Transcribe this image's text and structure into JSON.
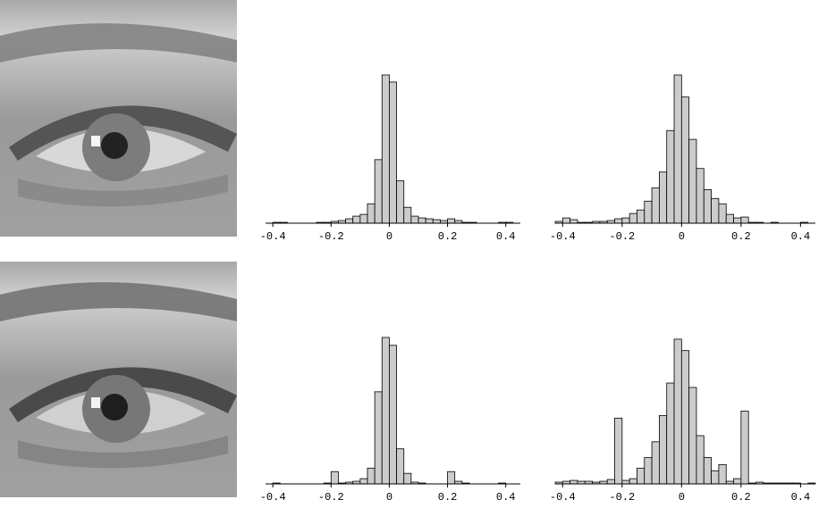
{
  "chart_data": [
    {
      "type": "histogram",
      "color": "#cccccc",
      "bins": [
        -0.425,
        -0.4,
        -0.375,
        -0.35,
        -0.325,
        -0.3,
        -0.275,
        -0.25,
        -0.225,
        -0.2,
        -0.175,
        -0.15,
        -0.125,
        -0.1,
        -0.075,
        -0.05,
        -0.025,
        0,
        0.025,
        0.05,
        0.075,
        0.1,
        0.125,
        0.15,
        0.175,
        0.2,
        0.225,
        0.25,
        0.275,
        0.3,
        0.325,
        0.35,
        0.375,
        0.4,
        0.425,
        0.45
      ],
      "values": [
        0,
        1,
        1,
        0,
        0,
        0,
        0,
        1,
        1,
        2,
        3,
        5,
        8,
        10,
        22,
        72,
        168,
        160,
        48,
        18,
        8,
        6,
        5,
        4,
        3,
        5,
        3,
        1,
        1,
        0,
        0,
        0,
        1,
        1,
        0
      ],
      "xlim": [
        -0.425,
        0.45
      ],
      "xticks": [
        -0.4,
        -0.2,
        0,
        0.2,
        0.4
      ],
      "ylim": [
        0,
        170
      ]
    },
    {
      "type": "histogram",
      "color": "#cccccc",
      "bins": [
        -0.425,
        -0.4,
        -0.375,
        -0.35,
        -0.325,
        -0.3,
        -0.275,
        -0.25,
        -0.225,
        -0.2,
        -0.175,
        -0.15,
        -0.125,
        -0.1,
        -0.075,
        -0.05,
        -0.025,
        0,
        0.025,
        0.05,
        0.075,
        0.1,
        0.125,
        0.15,
        0.175,
        0.2,
        0.225,
        0.25,
        0.275,
        0.3,
        0.325,
        0.35,
        0.375,
        0.4,
        0.425,
        0.45
      ],
      "values": [
        2,
        6,
        4,
        1,
        1,
        2,
        2,
        3,
        5,
        6,
        11,
        15,
        25,
        40,
        58,
        105,
        168,
        143,
        95,
        62,
        38,
        28,
        22,
        10,
        6,
        7,
        1,
        1,
        0,
        1,
        0,
        0,
        0,
        1,
        0
      ],
      "xlim": [
        -0.425,
        0.45
      ],
      "xticks": [
        -0.4,
        -0.2,
        0,
        0.2,
        0.4
      ],
      "ylim": [
        0,
        170
      ]
    },
    {
      "type": "histogram",
      "color": "#cccccc",
      "bins": [
        -0.425,
        -0.4,
        -0.375,
        -0.35,
        -0.325,
        -0.3,
        -0.275,
        -0.25,
        -0.225,
        -0.2,
        -0.175,
        -0.15,
        -0.125,
        -0.1,
        -0.075,
        -0.05,
        -0.025,
        0,
        0.025,
        0.05,
        0.075,
        0.1,
        0.125,
        0.15,
        0.175,
        0.2,
        0.225,
        0.25,
        0.275,
        0.3,
        0.325,
        0.35,
        0.375,
        0.4,
        0.425,
        0.45
      ],
      "values": [
        0,
        1,
        0,
        0,
        0,
        0,
        0,
        0,
        1,
        14,
        1,
        2,
        3,
        6,
        18,
        105,
        167,
        158,
        40,
        12,
        2,
        1,
        0,
        0,
        0,
        14,
        3,
        1,
        0,
        0,
        0,
        0,
        1,
        0,
        0
      ],
      "xlim": [
        -0.425,
        0.45
      ],
      "xticks": [
        -0.4,
        -0.2,
        0,
        0.2,
        0.4
      ],
      "ylim": [
        0,
        170
      ]
    },
    {
      "type": "histogram",
      "color": "#cccccc",
      "bins": [
        -0.425,
        -0.4,
        -0.375,
        -0.35,
        -0.325,
        -0.3,
        -0.275,
        -0.25,
        -0.225,
        -0.2,
        -0.175,
        -0.15,
        -0.125,
        -0.1,
        -0.075,
        -0.05,
        -0.025,
        0,
        0.025,
        0.05,
        0.075,
        0.1,
        0.125,
        0.15,
        0.175,
        0.2,
        0.225,
        0.25,
        0.275,
        0.3,
        0.325,
        0.35,
        0.375,
        0.4,
        0.425,
        0.45
      ],
      "values": [
        2,
        3,
        4,
        3,
        3,
        2,
        3,
        5,
        75,
        4,
        6,
        18,
        30,
        48,
        78,
        115,
        165,
        152,
        110,
        55,
        30,
        15,
        22,
        3,
        6,
        83,
        1,
        2,
        1,
        1,
        1,
        1,
        1,
        0,
        1
      ],
      "xlim": [
        -0.425,
        0.45
      ],
      "xticks": [
        -0.4,
        -0.2,
        0,
        0.2,
        0.4
      ],
      "ylim": [
        0,
        170
      ]
    }
  ]
}
